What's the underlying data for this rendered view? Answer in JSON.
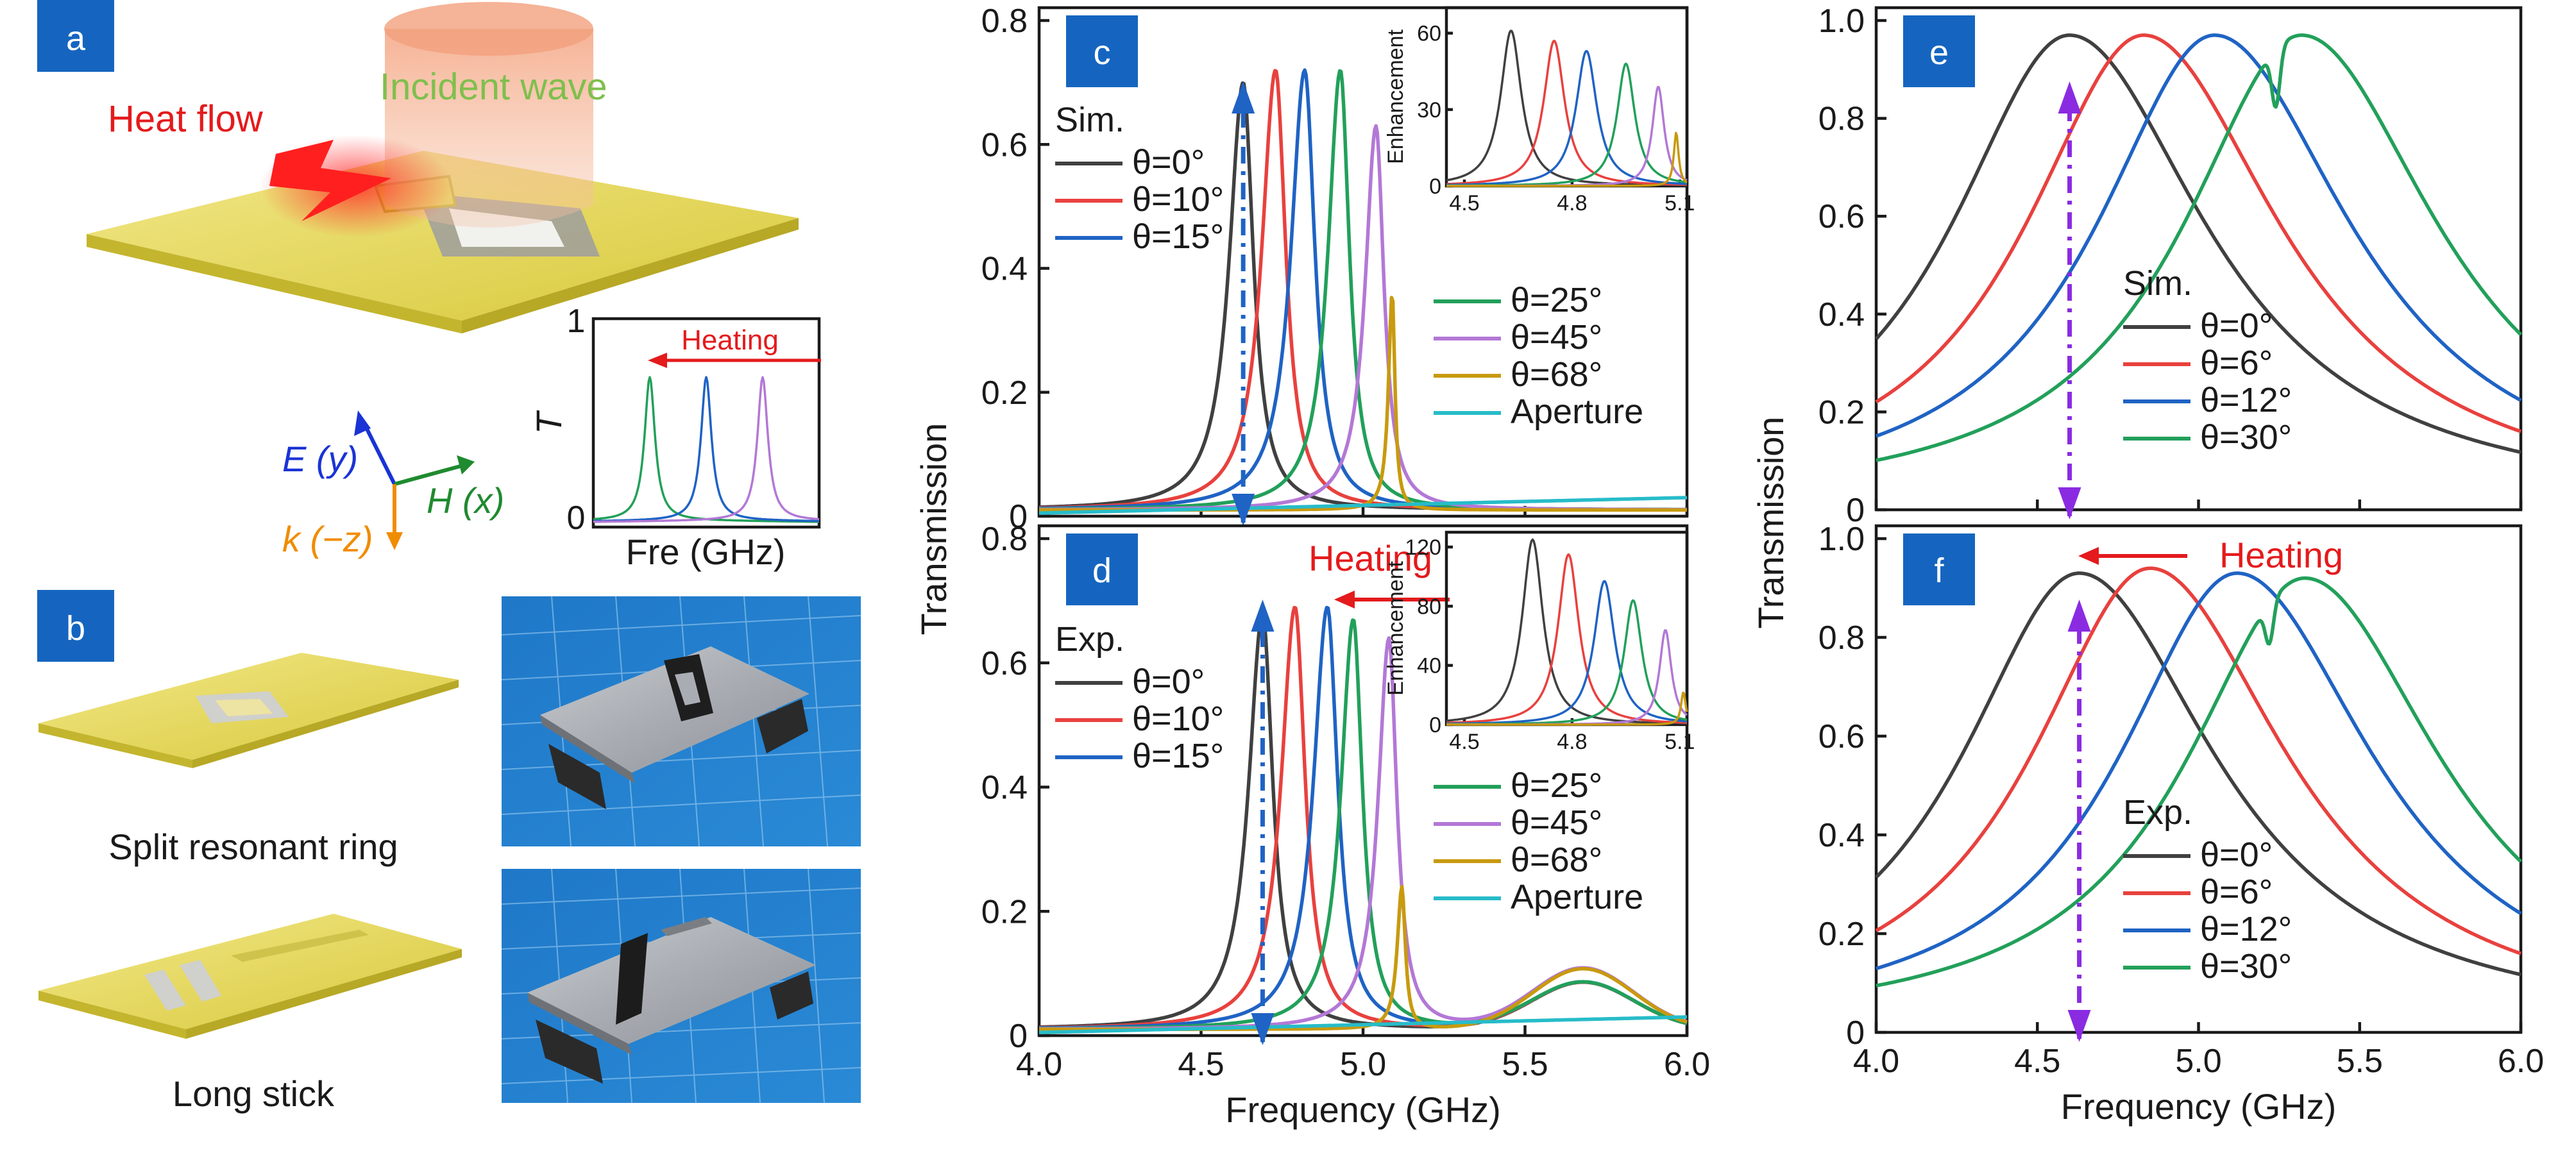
{
  "colors": {
    "black": "#404040",
    "red": "#e8413e",
    "blue": "#1f63c4",
    "green": "#22a05a",
    "purple": "#b378d6",
    "gold": "#c89a0f",
    "cyan": "#27bcc9",
    "violet": "#8a2be2",
    "label_bg": "#1565c0",
    "plate": "#e3d54a"
  },
  "panel_labels": {
    "a": "a",
    "b": "b",
    "c": "c",
    "d": "d",
    "e": "e",
    "f": "f"
  },
  "panel_a": {
    "heat_flow": "Heat flow",
    "incident_wave": "Incident wave",
    "axis_e": "E (y)",
    "axis_h": "H (x)",
    "axis_k": "k (−z)",
    "inset": {
      "heating": "Heating",
      "ylabel": "T",
      "xlabel": "Fre (GHz)",
      "y_top_tick": "1",
      "y_bottom_tick": "0",
      "peaks": [
        {
          "color": "green",
          "center": 0.25
        },
        {
          "color": "blue",
          "center": 0.5
        },
        {
          "color": "purple",
          "center": 0.75
        }
      ]
    }
  },
  "panel_b": {
    "caption_1": "Split resonant ring",
    "caption_2": "Long stick"
  },
  "chart_data": [
    {
      "id": "c",
      "type": "line",
      "ylabel": "Transmission",
      "xlim": [
        4.0,
        6.0
      ],
      "ylim": [
        0,
        0.8
      ],
      "yticks": [
        "0",
        "0.2",
        "0.4",
        "0.6",
        "0.8"
      ],
      "legend_header": "Sim.",
      "series": [
        {
          "name": "θ=0°",
          "color": "black",
          "peak_x": 4.63,
          "peak_y": 0.69,
          "width": 0.045
        },
        {
          "name": "θ=10°",
          "color": "red",
          "peak_x": 4.73,
          "peak_y": 0.71,
          "width": 0.045
        },
        {
          "name": "θ=15°",
          "color": "blue",
          "peak_x": 4.82,
          "peak_y": 0.71,
          "width": 0.045
        },
        {
          "name": "θ=25°",
          "color": "green",
          "peak_x": 4.93,
          "peak_y": 0.71,
          "width": 0.04
        },
        {
          "name": "θ=45°",
          "color": "purple",
          "peak_x": 5.04,
          "peak_y": 0.62,
          "width": 0.035
        },
        {
          "name": "θ=68°",
          "color": "gold",
          "peak_x": 5.09,
          "peak_y": 0.35,
          "width": 0.012
        },
        {
          "name": "Aperture",
          "color": "cyan",
          "flat": true,
          "y_start": 0.005,
          "y_end": 0.03
        }
      ],
      "marker_x": 4.63,
      "inset": {
        "ylabel": "Enhancement",
        "xlim": [
          4.45,
          5.12
        ],
        "ylim": [
          0,
          70
        ],
        "xticks": [
          "4.5",
          "4.8",
          "5.1"
        ],
        "yticks": [
          "0",
          "30",
          "60"
        ],
        "peaks": [
          {
            "color": "black",
            "x": 4.63,
            "y": 61,
            "w": 0.035
          },
          {
            "color": "red",
            "x": 4.75,
            "y": 57,
            "w": 0.035
          },
          {
            "color": "blue",
            "x": 4.84,
            "y": 53,
            "w": 0.035
          },
          {
            "color": "green",
            "x": 4.95,
            "y": 48,
            "w": 0.03
          },
          {
            "color": "purple",
            "x": 5.04,
            "y": 39,
            "w": 0.02
          },
          {
            "color": "gold",
            "x": 5.09,
            "y": 21,
            "w": 0.008
          }
        ]
      }
    },
    {
      "id": "d",
      "type": "line",
      "xlabel": "Frequency (GHz)",
      "xlim": [
        4.0,
        6.0
      ],
      "ylim": [
        0,
        0.8
      ],
      "xticks": [
        "4.0",
        "4.5",
        "5.0",
        "5.5",
        "6.0"
      ],
      "yticks": [
        "0",
        "0.2",
        "0.4",
        "0.6",
        "0.8"
      ],
      "legend_header": "Exp.",
      "heating": "Heating",
      "series": [
        {
          "name": "θ=0°",
          "color": "black",
          "peak_x": 4.69,
          "peak_y": 0.67,
          "width": 0.045
        },
        {
          "name": "θ=10°",
          "color": "red",
          "peak_x": 4.79,
          "peak_y": 0.68,
          "width": 0.045
        },
        {
          "name": "θ=15°",
          "color": "blue",
          "peak_x": 4.89,
          "peak_y": 0.68,
          "width": 0.045
        },
        {
          "name": "θ=25°",
          "color": "green",
          "peak_x": 4.97,
          "peak_y": 0.66,
          "width": 0.04
        },
        {
          "name": "θ=45°",
          "color": "purple",
          "peak_x": 5.08,
          "peak_y": 0.63,
          "width": 0.035
        },
        {
          "name": "θ=68°",
          "color": "gold",
          "peak_x": 5.12,
          "peak_y": 0.23,
          "width": 0.015
        },
        {
          "name": "Aperture",
          "color": "cyan",
          "flat": true,
          "y_start": 0.005,
          "y_end": 0.03
        }
      ],
      "marker_x": 4.69,
      "inset": {
        "ylabel": "Enhancement",
        "xlim": [
          4.45,
          5.12
        ],
        "ylim": [
          0,
          130
        ],
        "xticks": [
          "4.5",
          "4.8",
          "5.1"
        ],
        "yticks": [
          "0",
          "40",
          "80",
          "120"
        ],
        "peaks": [
          {
            "color": "black",
            "x": 4.69,
            "y": 125,
            "w": 0.035
          },
          {
            "color": "red",
            "x": 4.79,
            "y": 115,
            "w": 0.035
          },
          {
            "color": "blue",
            "x": 4.89,
            "y": 97,
            "w": 0.035
          },
          {
            "color": "green",
            "x": 4.97,
            "y": 84,
            "w": 0.03
          },
          {
            "color": "purple",
            "x": 5.06,
            "y": 64,
            "w": 0.02
          },
          {
            "color": "gold",
            "x": 5.11,
            "y": 22,
            "w": 0.008
          }
        ]
      }
    },
    {
      "id": "e",
      "type": "line",
      "ylabel": "Transmission",
      "xlim": [
        4.0,
        6.0
      ],
      "ylim": [
        0,
        1.0
      ],
      "yticks": [
        "0",
        "0.2",
        "0.4",
        "0.6",
        "0.8",
        "1.0"
      ],
      "legend_header": "Sim.",
      "series": [
        {
          "name": "θ=0°",
          "color": "black",
          "peak_x": 4.6,
          "peak_y": 0.97
        },
        {
          "name": "θ=6°",
          "color": "red",
          "peak_x": 4.83,
          "peak_y": 0.97
        },
        {
          "name": "θ=12°",
          "color": "blue",
          "peak_x": 5.05,
          "peak_y": 0.97
        },
        {
          "name": "θ=30°",
          "color": "green",
          "peak_x": 5.32,
          "peak_y": 0.97,
          "dip_x": 5.24,
          "dip_y": 0.84
        }
      ],
      "marker_x": 4.6
    },
    {
      "id": "f",
      "type": "line",
      "xlabel": "Frequency (GHz)",
      "xlim": [
        4.0,
        6.0
      ],
      "ylim": [
        0,
        1.0
      ],
      "xticks": [
        "4.0",
        "4.5",
        "5.0",
        "5.5",
        "6.0"
      ],
      "yticks": [
        "0",
        "0.2",
        "0.4",
        "0.6",
        "0.8",
        "1.0"
      ],
      "legend_header": "Exp.",
      "heating": "Heating",
      "series": [
        {
          "name": "θ=0°",
          "color": "black",
          "peak_x": 4.63,
          "peak_y": 0.93
        },
        {
          "name": "θ=6°",
          "color": "red",
          "peak_x": 4.85,
          "peak_y": 0.94
        },
        {
          "name": "θ=12°",
          "color": "blue",
          "peak_x": 5.12,
          "peak_y": 0.93
        },
        {
          "name": "θ=30°",
          "color": "green",
          "peak_x": 5.33,
          "peak_y": 0.92,
          "dip_x": 5.22,
          "dip_y": 0.83
        }
      ],
      "marker_x": 4.63
    }
  ]
}
